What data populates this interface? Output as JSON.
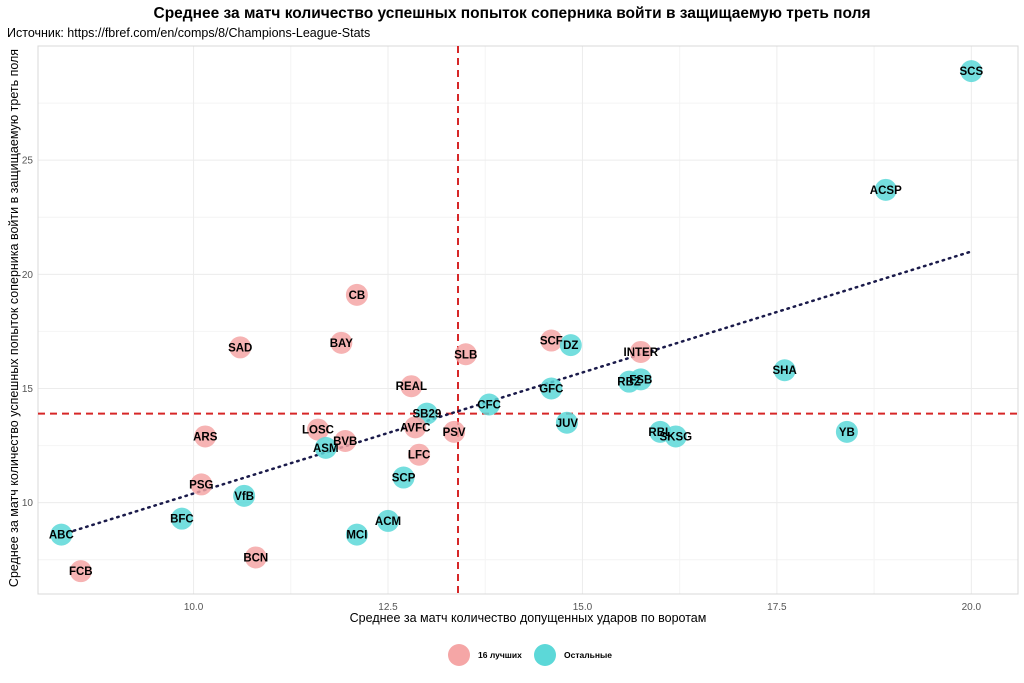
{
  "title": "Среднее за матч количество успешных попыток соперника войти в защищаемую треть поля",
  "subtitle": "Источник: https://fbref.com/en/comps/8/Champions-League-Stats",
  "colors": {
    "top16": "#f5a6a6",
    "others": "#5cd8d8",
    "refline": "#d62728",
    "trend": "#1a1a4a",
    "grid": "#ececec"
  },
  "legend": [
    {
      "label": "16 лучших",
      "group": "top16"
    },
    {
      "label": "Остальные",
      "group": "others"
    }
  ],
  "chart_data": {
    "type": "scatter",
    "xlabel": "Среднее за матч количество допущенных ударов по воротам",
    "ylabel": "Среднее за матч количество успешных попыток соперника войти в защищаемую треть поля",
    "xlim": [
      8.0,
      20.6
    ],
    "ylim": [
      6.0,
      30.0
    ],
    "xticks": [
      10.0,
      12.5,
      15.0,
      17.5,
      20.0
    ],
    "yticks": [
      10,
      15,
      20,
      25
    ],
    "xtick_labels": [
      "10.0",
      "12.5",
      "15.0",
      "17.5",
      "20.0"
    ],
    "ytick_labels": [
      "10",
      "15",
      "20",
      "25"
    ],
    "grid": true,
    "legend_position": "bottom",
    "reference_lines": {
      "x": 13.4,
      "y": 13.9
    },
    "trendline": {
      "x": [
        8.3,
        20.0
      ],
      "y": [
        8.6,
        21.0
      ]
    },
    "points": [
      {
        "label": "SCS",
        "x": 20.0,
        "y": 28.9,
        "group": "others"
      },
      {
        "label": "ACSP",
        "x": 18.9,
        "y": 23.7,
        "group": "others"
      },
      {
        "label": "CB",
        "x": 12.1,
        "y": 19.1,
        "group": "top16"
      },
      {
        "label": "SAD",
        "x": 10.6,
        "y": 16.8,
        "group": "top16"
      },
      {
        "label": "BAY",
        "x": 11.9,
        "y": 17.0,
        "group": "top16"
      },
      {
        "label": "SCF",
        "x": 14.6,
        "y": 17.1,
        "group": "top16"
      },
      {
        "label": "DZ",
        "x": 14.85,
        "y": 16.9,
        "group": "others"
      },
      {
        "label": "SLB",
        "x": 13.5,
        "y": 16.5,
        "group": "top16"
      },
      {
        "label": "INTER",
        "x": 15.75,
        "y": 16.6,
        "group": "top16"
      },
      {
        "label": "SHA",
        "x": 17.6,
        "y": 15.8,
        "group": "others"
      },
      {
        "label": "FSB",
        "x": 15.75,
        "y": 15.4,
        "group": "others"
      },
      {
        "label": "RBZ",
        "x": 15.6,
        "y": 15.3,
        "group": "others"
      },
      {
        "label": "GFC",
        "x": 14.6,
        "y": 15.0,
        "group": "others"
      },
      {
        "label": "REAL",
        "x": 12.8,
        "y": 15.1,
        "group": "top16"
      },
      {
        "label": "CFC",
        "x": 13.8,
        "y": 14.3,
        "group": "others"
      },
      {
        "label": "SB29",
        "x": 13.0,
        "y": 13.9,
        "group": "others"
      },
      {
        "label": "JUV",
        "x": 14.8,
        "y": 13.5,
        "group": "others"
      },
      {
        "label": "YB",
        "x": 18.4,
        "y": 13.1,
        "group": "others"
      },
      {
        "label": "RBL",
        "x": 16.0,
        "y": 13.1,
        "group": "others"
      },
      {
        "label": "SKSG",
        "x": 16.2,
        "y": 12.9,
        "group": "others"
      },
      {
        "label": "LOSC",
        "x": 11.6,
        "y": 13.2,
        "group": "top16"
      },
      {
        "label": "AVFC",
        "x": 12.85,
        "y": 13.3,
        "group": "top16"
      },
      {
        "label": "PSV",
        "x": 13.35,
        "y": 13.1,
        "group": "top16"
      },
      {
        "label": "ARS",
        "x": 10.15,
        "y": 12.9,
        "group": "top16"
      },
      {
        "label": "BVB",
        "x": 11.95,
        "y": 12.7,
        "group": "top16"
      },
      {
        "label": "ASM",
        "x": 11.7,
        "y": 12.4,
        "group": "others"
      },
      {
        "label": "LFC",
        "x": 12.9,
        "y": 12.1,
        "group": "top16"
      },
      {
        "label": "SCP",
        "x": 12.7,
        "y": 11.1,
        "group": "others"
      },
      {
        "label": "PSG",
        "x": 10.1,
        "y": 10.8,
        "group": "top16"
      },
      {
        "label": "VfB",
        "x": 10.65,
        "y": 10.3,
        "group": "others"
      },
      {
        "label": "BFC",
        "x": 9.85,
        "y": 9.3,
        "group": "others"
      },
      {
        "label": "ACM",
        "x": 12.5,
        "y": 9.2,
        "group": "others"
      },
      {
        "label": "MCI",
        "x": 12.1,
        "y": 8.6,
        "group": "others"
      },
      {
        "label": "ABC",
        "x": 8.3,
        "y": 8.6,
        "group": "others"
      },
      {
        "label": "BCN",
        "x": 10.8,
        "y": 7.6,
        "group": "top16"
      },
      {
        "label": "FCB",
        "x": 8.55,
        "y": 7.0,
        "group": "top16"
      }
    ]
  }
}
